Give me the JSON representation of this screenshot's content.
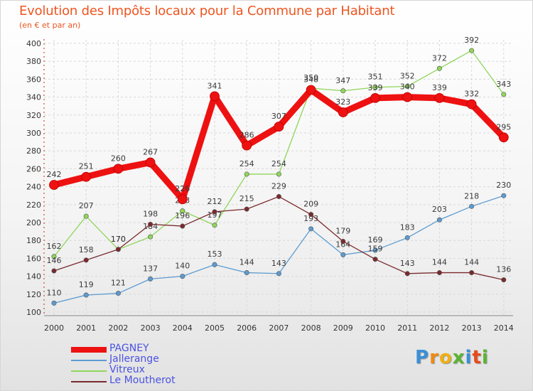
{
  "header": {
    "title": "Evolution des Impôts locaux pour la Commune par Habitant",
    "subtitle": "(en € et par an)"
  },
  "chart_data": {
    "type": "line",
    "title": "Evolution des Impôts locaux pour la Commune par Habitant",
    "subtitle": "(en € et par an)",
    "xlabel": "",
    "ylabel": "",
    "x": [
      "2000",
      "2001",
      "2002",
      "2003",
      "2004",
      "2005",
      "2006",
      "2007",
      "2008",
      "2009",
      "2010",
      "2011",
      "2012",
      "2013",
      "2014"
    ],
    "ylim": [
      100,
      400
    ],
    "yticks": [
      100,
      120,
      140,
      160,
      180,
      200,
      220,
      240,
      260,
      280,
      300,
      320,
      340,
      360,
      380,
      400
    ],
    "grid": true,
    "series": [
      {
        "name": "Jallerange",
        "color": "#5d9bd0",
        "values": [
          110,
          119,
          121,
          137,
          140,
          153,
          144,
          143,
          193,
          164,
          169,
          183,
          203,
          218,
          230
        ]
      },
      {
        "name": "Vitreux",
        "color": "#8fd65a",
        "values": [
          162,
          207,
          170,
          184,
          213,
          197,
          254,
          254,
          350,
          347,
          351,
          352,
          372,
          392,
          343
        ]
      },
      {
        "name": "Le Moutherot",
        "color": "#7a2a2e",
        "values": [
          146,
          158,
          170,
          198,
          196,
          212,
          215,
          229,
          209,
          179,
          159,
          143,
          144,
          144,
          136
        ]
      },
      {
        "name": "PAGNEY",
        "color": "#ee1111",
        "values": [
          242,
          251,
          260,
          267,
          226,
          341,
          286,
          307,
          348,
          323,
          339,
          340,
          339,
          332,
          295
        ]
      }
    ],
    "legend_order": [
      "PAGNEY",
      "Jallerange",
      "Vitreux",
      "Le Moutherot"
    ]
  },
  "logo": {
    "letters": [
      "P",
      "r",
      "o",
      "x",
      "i",
      "t",
      "i"
    ],
    "colors": [
      "#3a8fd8",
      "#f08a10",
      "#f0b010",
      "#59b530",
      "#3a8fd8",
      "#e84a1a",
      "#59b530"
    ]
  }
}
